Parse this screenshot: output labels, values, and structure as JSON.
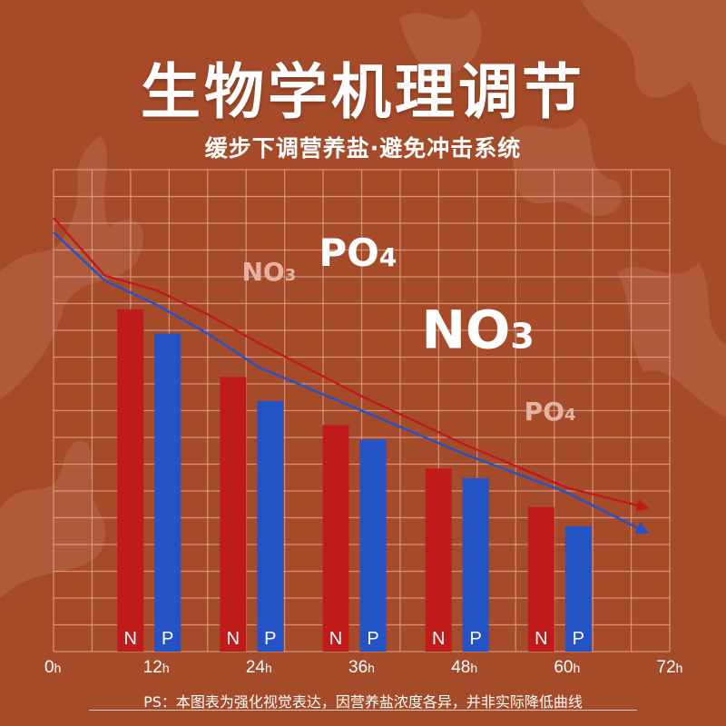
{
  "title": "生物学机理调节",
  "subtitle": "缓步下调营养盐·避免冲击系统",
  "footnote": "PS：本图表为强化视觉表达，因营养盐浓度各异，并非实际降低曲线",
  "colors": {
    "background": "#a64b2a",
    "n_bar": "#c01b1b",
    "p_bar": "#2453c6",
    "grid": "#e2a999",
    "text": "#ffffff"
  },
  "chart_data": {
    "type": "bar",
    "x_ticks": [
      {
        "num": "0",
        "unit": "h",
        "value": 0
      },
      {
        "num": "12",
        "unit": "h",
        "value": 12
      },
      {
        "num": "24",
        "unit": "h",
        "value": 24
      },
      {
        "num": "36",
        "unit": "h",
        "value": 36
      },
      {
        "num": "48",
        "unit": "h",
        "value": 48
      },
      {
        "num": "60",
        "unit": "h",
        "value": 60
      },
      {
        "num": "72",
        "unit": "h",
        "value": 72
      }
    ],
    "xlim": [
      0,
      72
    ],
    "ylim": [
      0,
      100
    ],
    "categories": [
      12,
      24,
      36,
      48,
      60
    ],
    "series": [
      {
        "name": "N",
        "values": [
          71,
          57,
          47,
          38,
          30
        ]
      },
      {
        "name": "P",
        "values": [
          66,
          52,
          44,
          36,
          26
        ]
      }
    ],
    "lines": [
      {
        "series": "N",
        "points": [
          [
            0,
            90
          ],
          [
            6,
            78
          ],
          [
            12,
            75
          ],
          [
            18,
            70
          ],
          [
            24,
            64
          ],
          [
            36,
            53
          ],
          [
            48,
            43
          ],
          [
            60,
            34
          ],
          [
            69,
            30
          ]
        ]
      },
      {
        "series": "P",
        "points": [
          [
            0,
            87
          ],
          [
            6,
            77
          ],
          [
            12,
            72
          ],
          [
            18,
            66
          ],
          [
            24,
            59
          ],
          [
            36,
            50
          ],
          [
            48,
            41
          ],
          [
            60,
            33
          ],
          [
            69,
            25
          ]
        ]
      }
    ],
    "annotations": [
      {
        "main": "NO",
        "sub": "3",
        "x": 22,
        "y": 77,
        "size": "small",
        "faded": true
      },
      {
        "main": "PO",
        "sub": "4",
        "x": 31,
        "y": 80,
        "size": "medium",
        "faded": false
      },
      {
        "main": "NO",
        "sub": "3",
        "x": 43,
        "y": 63,
        "size": "large",
        "faded": false
      },
      {
        "main": "PO",
        "sub": "4",
        "x": 55,
        "y": 48,
        "size": "small",
        "faded": true
      }
    ],
    "grid": true
  }
}
